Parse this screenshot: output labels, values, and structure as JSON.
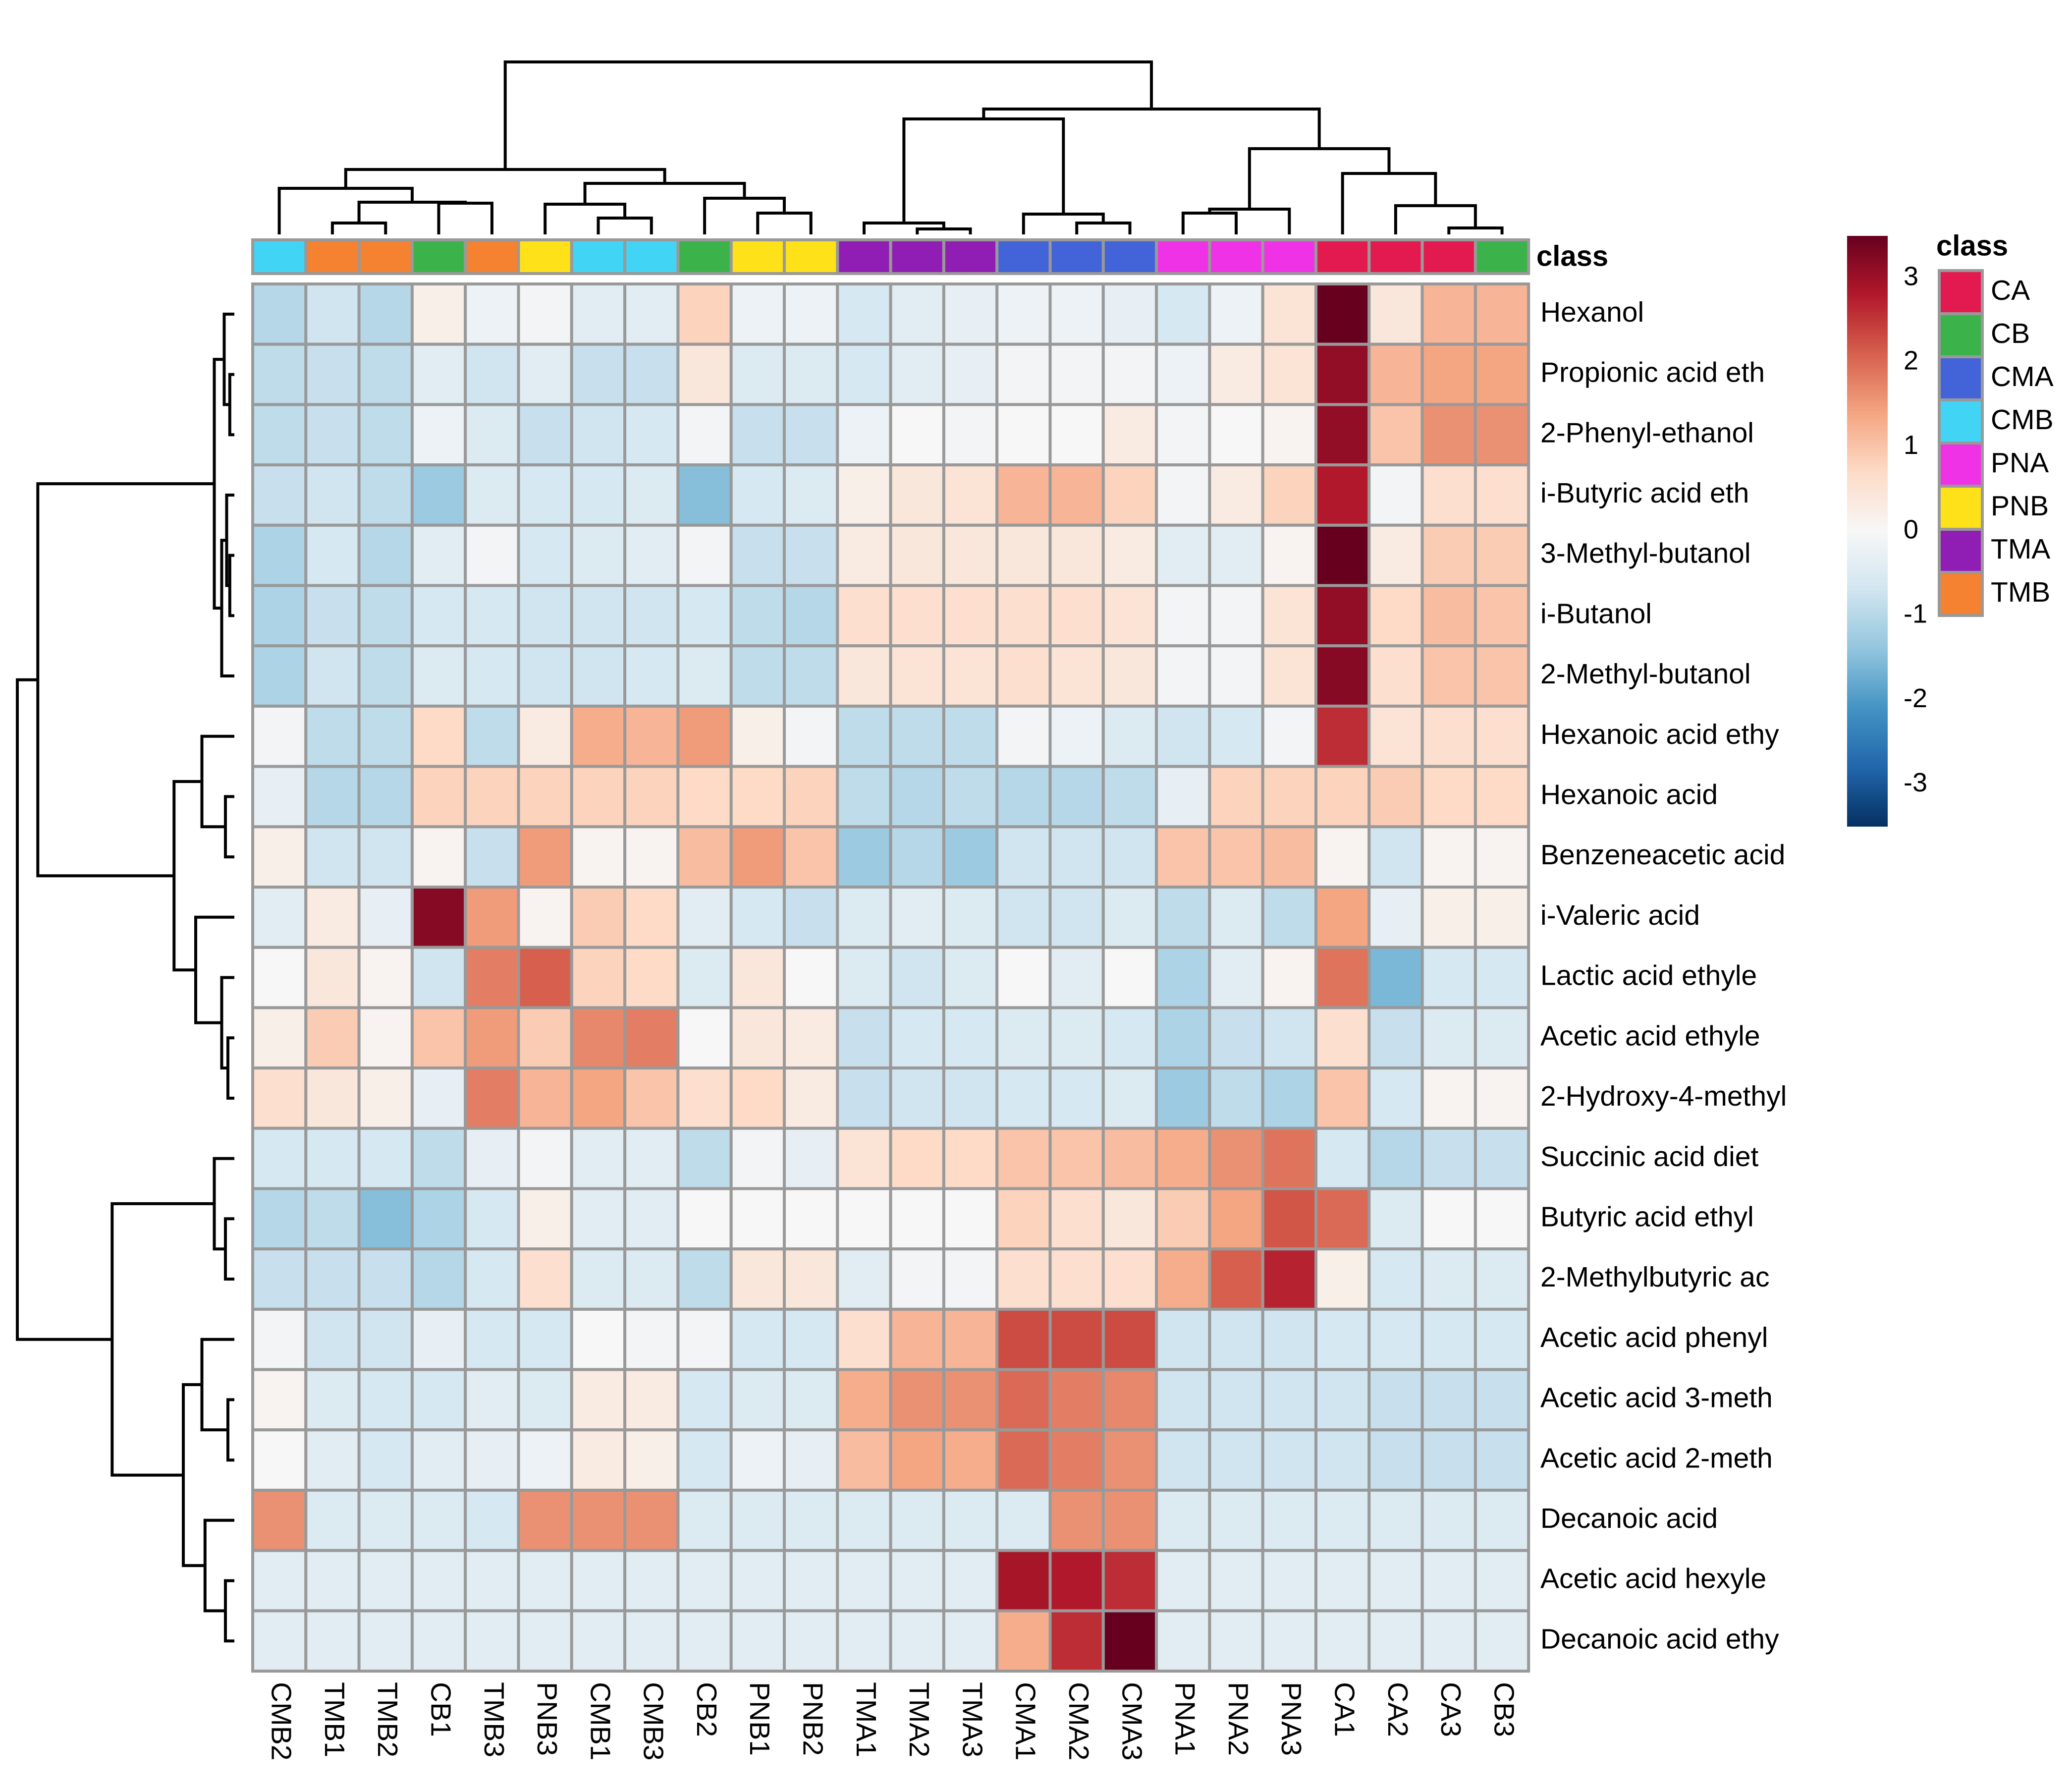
{
  "chart_data": {
    "type": "heatmap",
    "title": "",
    "annotation_title": "class",
    "columns": [
      "CMB2",
      "TMB1",
      "TMB2",
      "CB1",
      "TMB3",
      "PNB3",
      "CMB1",
      "CMB3",
      "CB2",
      "PNB1",
      "PNB2",
      "TMA1",
      "TMA2",
      "TMA3",
      "CMA1",
      "CMA2",
      "CMA3",
      "PNA1",
      "PNA2",
      "PNA3",
      "CA1",
      "CA2",
      "CA3",
      "CB3"
    ],
    "column_classes": [
      "CMB",
      "TMB",
      "TMB",
      "CB",
      "TMB",
      "PNB",
      "CMB",
      "CMB",
      "CB",
      "PNB",
      "PNB",
      "TMA",
      "TMA",
      "TMA",
      "CMA",
      "CMA",
      "CMA",
      "PNA",
      "PNA",
      "PNA",
      "CA",
      "CA",
      "CA",
      "CB"
    ],
    "rows": [
      "Hexanol",
      "Propionic acid eth",
      "2-Phenyl-ethanol",
      "i-Butyric acid eth",
      "3-Methyl-butanol",
      "i-Butanol",
      "2-Methyl-butanol",
      "Hexanoic acid ethy",
      "Hexanoic acid",
      "Benzeneacetic acid",
      "i-Valeric acid",
      "Lactic acid ethyle",
      "Acetic acid ethyle",
      "2-Hydroxy-4-methyl",
      "Succinic acid diet",
      "Butyric acid ethyl",
      "2-Methylbutyric ac",
      "Acetic acid phenyl",
      "Acetic acid 3-meth",
      "Acetic acid 2-meth",
      "Decanoic acid",
      "Acetic acid hexyle",
      "Decanoic acid ethy"
    ],
    "values": [
      [
        -1.0,
        -0.7,
        -1.0,
        0.2,
        -0.2,
        -0.1,
        -0.4,
        -0.4,
        0.8,
        -0.2,
        -0.2,
        -0.6,
        -0.4,
        -0.3,
        -0.2,
        -0.2,
        -0.3,
        -0.6,
        -0.2,
        0.5,
        3.5,
        0.4,
        1.2,
        1.2
      ],
      [
        -0.9,
        -0.8,
        -0.9,
        -0.4,
        -0.7,
        -0.4,
        -0.8,
        -0.8,
        0.4,
        -0.5,
        -0.5,
        -0.6,
        -0.4,
        -0.3,
        -0.1,
        -0.1,
        -0.1,
        -0.2,
        0.3,
        0.5,
        3.1,
        1.2,
        1.4,
        1.4
      ],
      [
        -0.9,
        -0.8,
        -0.9,
        -0.2,
        -0.5,
        -0.8,
        -0.7,
        -0.6,
        -0.1,
        -0.8,
        -0.8,
        -0.2,
        0.0,
        -0.1,
        0.0,
        0.0,
        0.3,
        -0.1,
        0.0,
        0.1,
        3.1,
        1.0,
        1.6,
        1.6
      ],
      [
        -0.8,
        -0.7,
        -0.9,
        -1.3,
        -0.5,
        -0.6,
        -0.6,
        -0.5,
        -1.5,
        -0.6,
        -0.5,
        0.2,
        0.4,
        0.5,
        1.2,
        1.2,
        0.8,
        -0.1,
        0.3,
        0.8,
        2.8,
        -0.1,
        0.6,
        0.6
      ],
      [
        -1.1,
        -0.6,
        -1.0,
        -0.4,
        -0.1,
        -0.6,
        -0.5,
        -0.4,
        -0.1,
        -0.8,
        -0.8,
        0.3,
        0.4,
        0.4,
        0.4,
        0.4,
        0.3,
        -0.4,
        -0.4,
        0.1,
        3.5,
        0.3,
        0.9,
        0.9
      ],
      [
        -1.1,
        -0.8,
        -0.9,
        -0.6,
        -0.6,
        -0.7,
        -0.7,
        -0.7,
        -0.6,
        -0.9,
        -1.0,
        0.6,
        0.6,
        0.6,
        0.6,
        0.6,
        0.5,
        -0.1,
        -0.1,
        0.5,
        3.1,
        0.7,
        1.1,
        1.0
      ],
      [
        -1.1,
        -0.7,
        -0.9,
        -0.5,
        -0.6,
        -0.7,
        -0.7,
        -0.6,
        -0.5,
        -0.9,
        -0.9,
        0.4,
        0.5,
        0.5,
        0.6,
        0.5,
        0.4,
        -0.1,
        -0.1,
        0.5,
        3.2,
        0.6,
        1.0,
        1.0
      ],
      [
        -0.1,
        -0.9,
        -0.9,
        0.7,
        -0.9,
        0.3,
        1.3,
        1.2,
        1.5,
        0.2,
        -0.1,
        -0.9,
        -0.9,
        -0.9,
        -0.1,
        -0.2,
        -0.5,
        -0.7,
        -0.6,
        -0.1,
        2.6,
        0.5,
        0.6,
        0.6
      ],
      [
        -0.3,
        -1.0,
        -1.0,
        0.8,
        0.8,
        0.8,
        0.8,
        0.8,
        0.7,
        0.7,
        0.8,
        -0.9,
        -1.0,
        -0.9,
        -1.0,
        -1.0,
        -0.9,
        -0.3,
        0.8,
        0.8,
        0.8,
        0.9,
        0.7,
        0.7
      ],
      [
        0.2,
        -0.7,
        -0.7,
        0.1,
        -0.8,
        1.5,
        0.1,
        0.1,
        1.1,
        1.5,
        1.0,
        -1.3,
        -1.0,
        -1.3,
        -0.7,
        -0.7,
        -0.7,
        1.0,
        1.0,
        1.1,
        0.1,
        -0.7,
        0.1,
        0.1
      ],
      [
        -0.4,
        0.3,
        -0.3,
        3.2,
        1.5,
        0.1,
        0.9,
        0.7,
        -0.4,
        -0.6,
        -0.8,
        -0.5,
        -0.4,
        -0.5,
        -0.7,
        -0.7,
        -0.5,
        -0.9,
        -0.5,
        -0.9,
        1.4,
        -0.3,
        0.2,
        0.2
      ],
      [
        0.0,
        0.4,
        0.1,
        -0.7,
        1.8,
        2.1,
        0.8,
        0.7,
        -0.5,
        0.4,
        0.0,
        -0.5,
        -0.7,
        -0.5,
        0.0,
        -0.4,
        0.0,
        -1.1,
        -0.4,
        0.1,
        1.9,
        -1.6,
        -0.6,
        -0.6
      ],
      [
        0.2,
        0.9,
        0.1,
        1.0,
        1.5,
        0.9,
        1.7,
        1.8,
        0.0,
        0.4,
        0.3,
        -0.8,
        -0.6,
        -0.6,
        -0.5,
        -0.5,
        -0.6,
        -1.1,
        -0.8,
        -0.7,
        0.6,
        -0.8,
        -0.5,
        -0.5
      ],
      [
        0.6,
        0.4,
        0.2,
        -0.3,
        1.8,
        1.2,
        1.4,
        1.0,
        0.6,
        0.7,
        0.3,
        -0.8,
        -0.7,
        -0.7,
        -0.6,
        -0.6,
        -0.5,
        -1.3,
        -0.9,
        -1.1,
        1.0,
        -0.6,
        0.1,
        0.1
      ],
      [
        -0.6,
        -0.6,
        -0.6,
        -0.9,
        -0.3,
        -0.1,
        -0.4,
        -0.4,
        -0.9,
        -0.1,
        -0.3,
        0.5,
        0.7,
        0.7,
        1.0,
        1.0,
        1.1,
        1.3,
        1.6,
        1.9,
        -0.6,
        -1.0,
        -0.8,
        -0.8
      ],
      [
        -1.0,
        -0.9,
        -1.5,
        -1.1,
        -0.6,
        0.2,
        -0.4,
        -0.4,
        0.0,
        0.0,
        0.0,
        0.0,
        0.0,
        0.0,
        0.8,
        0.6,
        0.4,
        0.9,
        1.4,
        2.2,
        2.0,
        -0.5,
        0.0,
        0.0
      ],
      [
        -0.8,
        -0.8,
        -0.8,
        -1.0,
        -0.6,
        0.6,
        -0.5,
        -0.5,
        -0.9,
        0.4,
        0.4,
        -0.4,
        -0.1,
        -0.1,
        0.6,
        0.6,
        0.6,
        1.3,
        2.1,
        2.7,
        0.2,
        -0.6,
        -0.5,
        -0.5
      ],
      [
        -0.1,
        -0.7,
        -0.7,
        -0.3,
        -0.6,
        -0.6,
        0.0,
        -0.1,
        -0.1,
        -0.6,
        -0.6,
        0.6,
        1.2,
        1.2,
        2.3,
        2.3,
        2.3,
        -0.7,
        -0.7,
        -0.7,
        -0.6,
        -0.6,
        -0.6,
        -0.6
      ],
      [
        0.1,
        -0.5,
        -0.6,
        -0.6,
        -0.4,
        -0.5,
        0.3,
        0.3,
        -0.6,
        -0.5,
        -0.5,
        1.3,
        1.6,
        1.6,
        2.0,
        1.8,
        1.7,
        -0.7,
        -0.7,
        -0.7,
        -0.7,
        -0.8,
        -0.8,
        -0.8
      ],
      [
        0.0,
        -0.4,
        -0.6,
        -0.4,
        -0.3,
        -0.2,
        0.3,
        0.2,
        -0.6,
        -0.2,
        -0.3,
        1.1,
        1.4,
        1.3,
        2.0,
        1.8,
        1.6,
        -0.7,
        -0.7,
        -0.7,
        -0.7,
        -0.8,
        -0.8,
        -0.8
      ],
      [
        1.6,
        -0.5,
        -0.5,
        -0.5,
        -0.6,
        1.6,
        1.6,
        1.6,
        -0.5,
        -0.5,
        -0.5,
        -0.5,
        -0.5,
        -0.5,
        -0.5,
        1.6,
        1.6,
        -0.5,
        -0.5,
        -0.5,
        -0.5,
        -0.5,
        -0.5,
        -0.5
      ],
      [
        -0.4,
        -0.4,
        -0.4,
        -0.4,
        -0.4,
        -0.4,
        -0.4,
        -0.4,
        -0.4,
        -0.4,
        -0.4,
        -0.4,
        -0.4,
        -0.4,
        2.9,
        2.8,
        2.6,
        -0.4,
        -0.4,
        -0.4,
        -0.4,
        -0.4,
        -0.4,
        -0.4
      ],
      [
        -0.4,
        -0.4,
        -0.4,
        -0.4,
        -0.4,
        -0.4,
        -0.4,
        -0.4,
        -0.4,
        -0.4,
        -0.4,
        -0.4,
        -0.4,
        -0.4,
        1.3,
        2.6,
        3.6,
        -0.4,
        -0.4,
        -0.4,
        -0.4,
        -0.4,
        -0.4,
        -0.4
      ]
    ],
    "color_scale": {
      "range": [
        -3.5,
        3.5
      ],
      "ticks": [
        "3",
        "2",
        "1",
        "0",
        "-1",
        "-2",
        "-3"
      ],
      "stops": [
        "#053061",
        "#2166ac",
        "#4393c3",
        "#92c5de",
        "#d1e5f0",
        "#f7f7f7",
        "#fddbc7",
        "#f4a582",
        "#d6604d",
        "#b2182b",
        "#67001f"
      ]
    },
    "class_legend": [
      {
        "name": "CA",
        "color": "#e31a4f"
      },
      {
        "name": "CB",
        "color": "#3cb34a"
      },
      {
        "name": "CMA",
        "color": "#4363d8"
      },
      {
        "name": "CMB",
        "color": "#42d4f4"
      },
      {
        "name": "PNA",
        "color": "#f032e6"
      },
      {
        "name": "PNB",
        "color": "#ffe119"
      },
      {
        "name": "TMA",
        "color": "#911eb4"
      },
      {
        "name": "TMB",
        "color": "#f58231"
      }
    ]
  }
}
